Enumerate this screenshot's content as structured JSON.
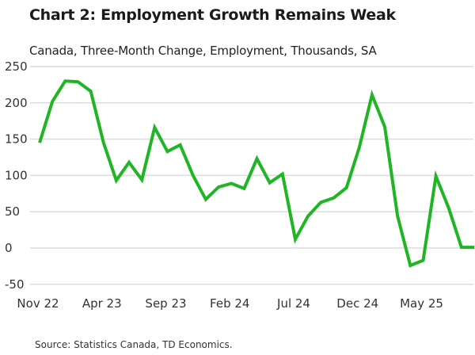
{
  "chart_data": {
    "type": "line",
    "title": "Chart 2: Employment Growth Remains Weak",
    "subtitle": "Canada, Three-Month Change, Employment, Thousands, SA",
    "source": "Source: Statistics Canada, TD Economics.",
    "xlabel": "",
    "ylabel": "",
    "ylim": [
      -50,
      250
    ],
    "yticks": [
      250,
      200,
      150,
      100,
      50,
      0,
      -50
    ],
    "xtick_labels": [
      "Nov 22",
      "Apr 23",
      "Sep 23",
      "Feb 24",
      "Jul 24",
      "Dec 24",
      "May 25"
    ],
    "grid": true,
    "line_color": "#1fb524",
    "x": [
      "Nov 22",
      "Dec 22",
      "Jan 23",
      "Feb 23",
      "Mar 23",
      "Apr 23",
      "May 23",
      "Jun 23",
      "Jul 23",
      "Aug 23",
      "Sep 23",
      "Oct 23",
      "Nov 23",
      "Dec 23",
      "Jan 24",
      "Feb 24",
      "Mar 24",
      "Apr 24",
      "May 24",
      "Jun 24",
      "Jul 24",
      "Aug 24",
      "Sep 24",
      "Oct 24",
      "Nov 24",
      "Dec 24",
      "Jan 25",
      "Feb 25",
      "Mar 25",
      "Apr 25",
      "May 25",
      "Jun 25",
      "Jul 25",
      "Aug 25",
      "Sep 25"
    ],
    "values": [
      145,
      202,
      230,
      229,
      216,
      145,
      93,
      118,
      94,
      166,
      133,
      142,
      100,
      67,
      84,
      89,
      82,
      123,
      90,
      102,
      12,
      44,
      63,
      69,
      83,
      138,
      211,
      167,
      44,
      -24,
      -17,
      99,
      55,
      1,
      1
    ]
  }
}
